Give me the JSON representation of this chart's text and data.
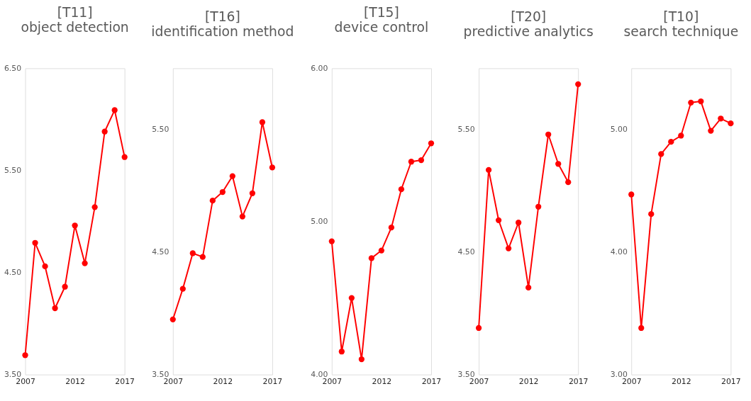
{
  "chart_data": [
    {
      "type": "line",
      "title": "[T11]",
      "subtitle": "object detection",
      "x": [
        2007,
        2008,
        2009,
        2010,
        2011,
        2012,
        2013,
        2014,
        2015,
        2016,
        2017
      ],
      "values": [
        3.69,
        4.79,
        4.56,
        4.15,
        4.36,
        4.96,
        4.59,
        5.14,
        5.88,
        6.09,
        5.63
      ],
      "color": "#ff0000",
      "marker": "circle",
      "line_style": "solid",
      "xlim": [
        2007,
        2017
      ],
      "xticks": [
        2007,
        2012,
        2017
      ],
      "ylim": [
        3.5,
        6.5
      ],
      "yticks": [
        {
          "value": 3.5,
          "label": "3.50"
        },
        {
          "value": 4.5,
          "label": "4.50"
        },
        {
          "value": 5.5,
          "label": "5.50"
        },
        {
          "value": 6.5,
          "label": "6.50"
        }
      ]
    },
    {
      "type": "line",
      "title": "[T16]",
      "subtitle": "identification method",
      "x": [
        2007,
        2008,
        2009,
        2010,
        2011,
        2012,
        2013,
        2014,
        2015,
        2016,
        2017
      ],
      "values": [
        3.95,
        4.2,
        4.49,
        4.46,
        4.92,
        4.99,
        5.12,
        4.79,
        4.98,
        5.56,
        5.19
      ],
      "color": "#ff0000",
      "marker": "circle",
      "line_style": "solid",
      "xlim": [
        2007,
        2017
      ],
      "xticks": [
        2007,
        2012,
        2017
      ],
      "ylim": [
        3.5,
        6.0
      ],
      "yticks": [
        {
          "value": 3.5,
          "label": "3.50"
        },
        {
          "value": 4.5,
          "label": "4.50"
        },
        {
          "value": 5.5,
          "label": "5.50"
        }
      ]
    },
    {
      "type": "line",
      "title": "[T15]",
      "subtitle": "device control",
      "x": [
        2007,
        2008,
        2009,
        2010,
        2011,
        2012,
        2013,
        2014,
        2015,
        2016,
        2017
      ],
      "values": [
        4.87,
        4.15,
        4.5,
        4.1,
        4.76,
        4.81,
        4.96,
        5.21,
        5.39,
        5.4,
        5.51
      ],
      "color": "#ff0000",
      "marker": "circle",
      "line_style": "solid",
      "xlim": [
        2007,
        2017
      ],
      "xticks": [
        2007,
        2012,
        2017
      ],
      "ylim": [
        4.0,
        6.0
      ],
      "yticks": [
        {
          "value": 4.0,
          "label": "4.00"
        },
        {
          "value": 5.0,
          "label": "5.00"
        },
        {
          "value": 6.0,
          "label": "6.00"
        }
      ]
    },
    {
      "type": "line",
      "title": "[T20]",
      "subtitle": "predictive analytics",
      "x": [
        2007,
        2008,
        2009,
        2010,
        2011,
        2012,
        2013,
        2014,
        2015,
        2016,
        2017
      ],
      "values": [
        3.88,
        5.17,
        4.76,
        4.53,
        4.74,
        4.21,
        4.87,
        5.46,
        5.22,
        5.07,
        5.87
      ],
      "color": "#ff0000",
      "marker": "circle",
      "line_style": "solid",
      "xlim": [
        2007,
        2017
      ],
      "xticks": [
        2007,
        2012,
        2017
      ],
      "ylim": [
        3.5,
        6.0
      ],
      "yticks": [
        {
          "value": 3.5,
          "label": "3.50"
        },
        {
          "value": 4.5,
          "label": "4.50"
        },
        {
          "value": 5.5,
          "label": "5.50"
        }
      ]
    },
    {
      "type": "line",
      "title": "[T10]",
      "subtitle": "search technique",
      "x": [
        2007,
        2008,
        2009,
        2010,
        2011,
        2012,
        2013,
        2014,
        2015,
        2016,
        2017
      ],
      "values": [
        4.47,
        3.38,
        4.31,
        4.8,
        4.9,
        4.95,
        5.22,
        5.23,
        4.99,
        5.09,
        5.05
      ],
      "color": "#ff0000",
      "marker": "circle",
      "line_style": "solid",
      "xlim": [
        2007,
        2017
      ],
      "xticks": [
        2007,
        2012,
        2017
      ],
      "ylim": [
        3.0,
        5.5
      ],
      "yticks": [
        {
          "value": 3.0,
          "label": "3.00"
        },
        {
          "value": 4.0,
          "label": "4.00"
        },
        {
          "value": 5.0,
          "label": "5.00"
        }
      ]
    }
  ]
}
